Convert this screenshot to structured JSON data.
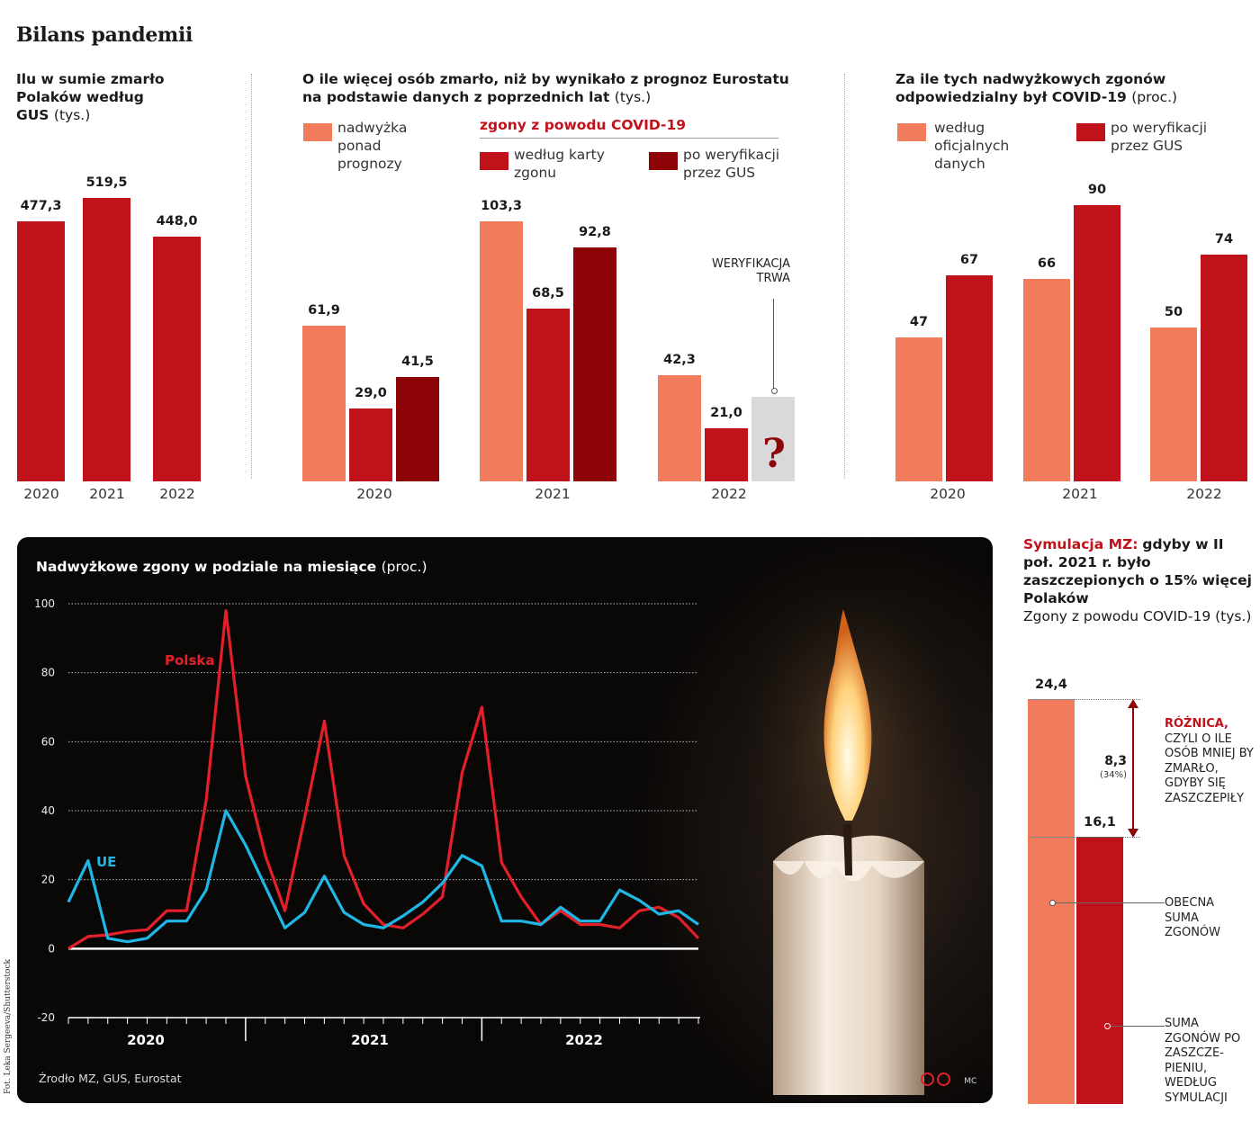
{
  "title": "Bilans pandemii",
  "colors": {
    "light": "#f27b5c",
    "red": "#c0121a",
    "dark": "#8d0508",
    "pending": "#d9d9d9",
    "eu": "#1fb7e6",
    "pl": "#e3202a"
  },
  "panel1": {
    "title_bold": "Ilu w sumie zmarło Polaków według GUS",
    "title_unit": "(tys.)"
  },
  "panel2": {
    "title_bold": "O ile więcej osób zmarło, niż by wynikało z prognoz Eurostatu na podstawie danych z poprzednich lat",
    "title_unit": "(tys.)",
    "legend_excess": "nadwyżka ponad prognozy",
    "legend_covid_header": "zgony z powodu COVID-19",
    "legend_card": "według karty zgonu",
    "legend_gus": "po weryfikacji przez GUS",
    "pending_label": "WERYFIKACJA TRWA",
    "pending_mark": "?"
  },
  "panel3": {
    "title_bold": "Za ile tych nadwyżkowych zgonów odpowiedzialny był COVID-19",
    "title_unit": "(proc.)",
    "legend_official": "według oficjalnych danych",
    "legend_gus": "po weryfikacji przez GUS"
  },
  "chart_data": [
    {
      "type": "bar",
      "categories": [
        "2020",
        "2021",
        "2022"
      ],
      "values": [
        477.3,
        519.5,
        448.0
      ],
      "labels": [
        "477,3",
        "519,5",
        "448,0"
      ]
    },
    {
      "type": "bar",
      "categories": [
        "2020",
        "2021",
        "2022"
      ],
      "series": [
        {
          "name": "nadwyżka ponad prognozy",
          "values": [
            61.9,
            103.3,
            42.3
          ],
          "labels": [
            "61,9",
            "103,3",
            "42,3"
          ]
        },
        {
          "name": "według karty zgonu",
          "values": [
            29.0,
            68.5,
            21.0
          ],
          "labels": [
            "29,0",
            "68,5",
            "21,0"
          ]
        },
        {
          "name": "po weryfikacji przez GUS",
          "values": [
            41.5,
            92.8,
            null
          ],
          "labels": [
            "41,5",
            "92,8",
            ""
          ]
        }
      ]
    },
    {
      "type": "bar",
      "categories": [
        "2020",
        "2021",
        "2022"
      ],
      "series": [
        {
          "name": "według oficjalnych danych",
          "values": [
            47,
            66,
            50
          ]
        },
        {
          "name": "po weryfikacji przez GUS",
          "values": [
            67,
            90,
            74
          ]
        }
      ]
    },
    {
      "type": "line",
      "title_bold": "Nadwyżkowe zgony w podziale na miesiące",
      "title_unit": "(proc.)",
      "ylim": [
        -20,
        100
      ],
      "yticks": [
        100,
        80,
        60,
        40,
        20,
        0,
        -20
      ],
      "xgroups": [
        "2020",
        "2021",
        "2022"
      ],
      "series": [
        {
          "name": "Polska",
          "values": [
            0,
            3.5,
            4,
            5,
            5.5,
            11,
            11,
            43,
            98,
            50,
            27,
            11,
            38,
            66,
            27,
            13,
            7,
            6,
            10,
            15,
            51,
            70,
            25,
            15,
            7,
            11,
            7,
            7,
            6,
            11,
            12,
            9,
            3
          ]
        },
        {
          "name": "UE",
          "values": [
            13.5,
            25.5,
            3,
            2,
            3,
            8,
            8,
            17,
            40,
            30,
            18,
            6,
            10.5,
            21,
            10.5,
            7,
            6,
            9.5,
            13.5,
            19,
            27,
            24,
            8,
            8,
            7,
            12,
            8,
            8,
            17,
            14,
            10,
            11,
            7
          ]
        }
      ]
    },
    {
      "type": "bar",
      "categories": [
        "OBECNA SUMA ZGONÓW",
        "SUMA ZGONÓW PO ZASZCZEPIENIU, WEDŁUG SYMULACJI"
      ],
      "values": [
        24.4,
        16.1
      ],
      "labels": [
        "24,4",
        "16,1"
      ],
      "difference": {
        "value": "8,3",
        "percent": "(34%)"
      }
    }
  ],
  "source": "Źrodło MZ, GUS, Eurostat",
  "logo": "MC",
  "photo_credit": "Fot. Leka Sergeeva/Shutterstock",
  "simulation": {
    "lead_red": "Symulacja MZ:",
    "lead_bold": "gdyby w II poł. 2021 r. było zaszczepionych o 15% więcej Polaków",
    "sub": "Zgony z powodu COVID-19 (tys.)",
    "diff_red": "RÓŻNICA,",
    "diff_text": "CZYLI O ILE OSÓB MNIEJ BY ZMARŁO, GDYBY SIĘ ZASZCZEPIŁY",
    "current_label": "OBECNA SUMA ZGONÓW",
    "sim_label": "SUMA ZGONÓW PO ZASZCZE-PIENIU, WEDŁUG SYMULACJI"
  }
}
